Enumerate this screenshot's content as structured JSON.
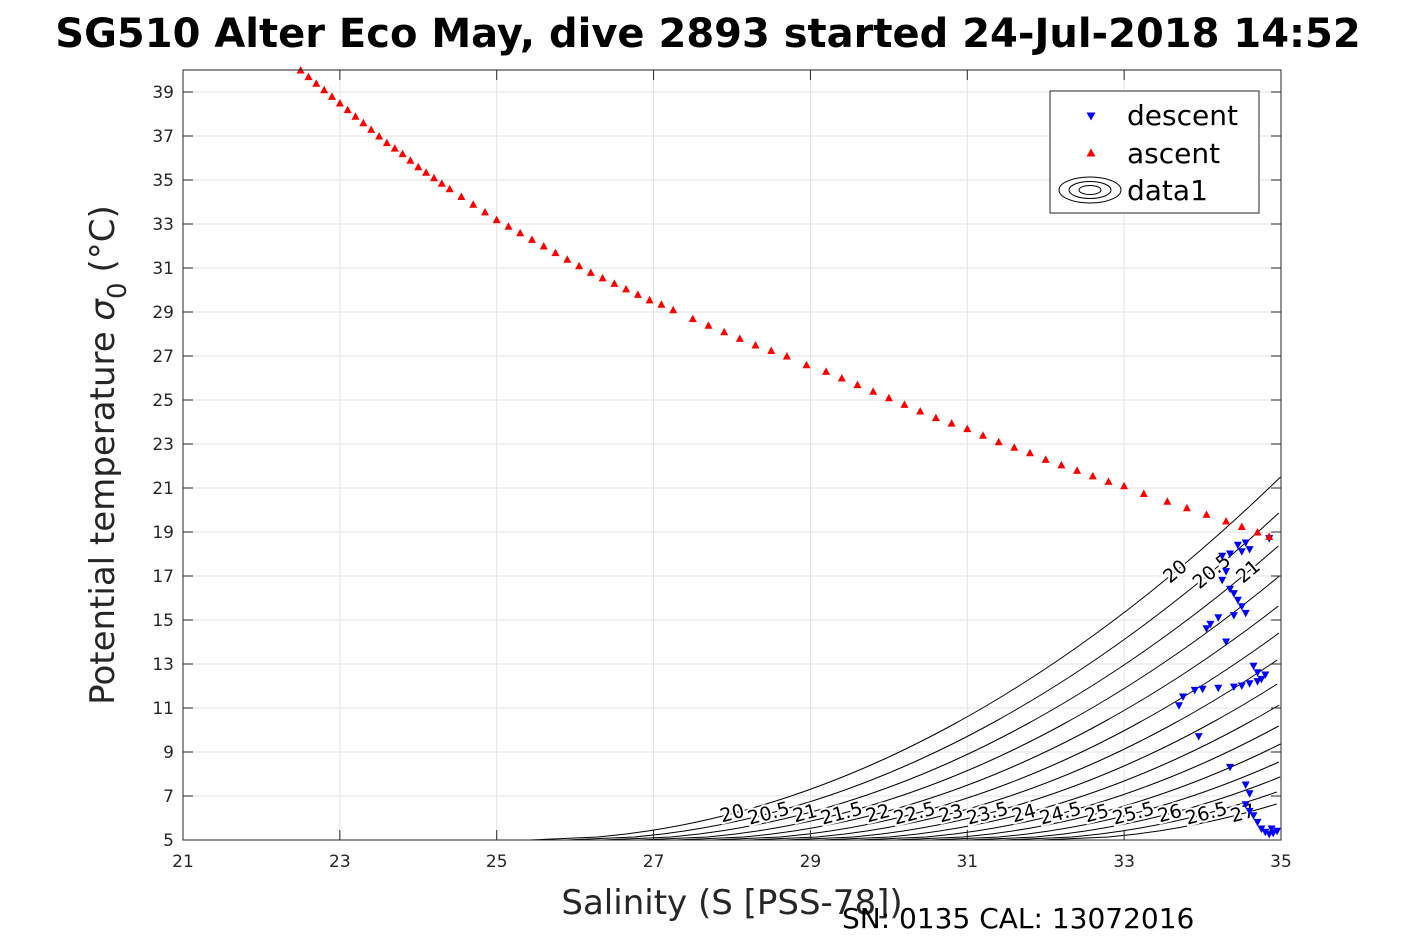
{
  "chart_data": {
    "type": "scatter",
    "title": "SG510 Alter Eco May, dive 2893 started 24-Jul-2018 14:52",
    "xlabel": "Salinity (S [PSS-78])",
    "ylabel": "Potential temperature",
    "ylabel_symbol": "σ",
    "ylabel_subscript": "0",
    "ylabel_unit": "(°C)",
    "footer": "SN: 0135  CAL: 13072016",
    "xlim": [
      21,
      35
    ],
    "ylim": [
      5,
      40
    ],
    "xticks": [
      "21",
      "23",
      "25",
      "27",
      "29",
      "31",
      "33",
      "35"
    ],
    "yticks": [
      "5",
      "7",
      "9",
      "11",
      "13",
      "15",
      "17",
      "19",
      "21",
      "23",
      "25",
      "27",
      "29",
      "31",
      "33",
      "35",
      "37",
      "39"
    ],
    "grid": true,
    "legend_position": "top-right",
    "legend": [
      {
        "name": "descent",
        "marker": "down-triangle",
        "color": "#0000ff"
      },
      {
        "name": "ascent",
        "marker": "up-triangle",
        "color": "#ff0000"
      },
      {
        "name": "data1",
        "marker": "contour",
        "color": "#000000"
      }
    ],
    "series": [
      {
        "name": "descent",
        "color": "#0000ff",
        "marker": "down-triangle",
        "points": [
          [
            34.85,
            18.7
          ],
          [
            34.55,
            18.5
          ],
          [
            34.45,
            18.4
          ],
          [
            34.6,
            18.2
          ],
          [
            34.35,
            18.0
          ],
          [
            34.25,
            17.9
          ],
          [
            34.5,
            18.1
          ],
          [
            34.3,
            17.2
          ],
          [
            34.25,
            16.8
          ],
          [
            34.35,
            16.4
          ],
          [
            34.4,
            16.2
          ],
          [
            34.45,
            15.9
          ],
          [
            34.5,
            15.6
          ],
          [
            34.55,
            15.3
          ],
          [
            34.4,
            15.2
          ],
          [
            34.2,
            15.1
          ],
          [
            34.1,
            14.8
          ],
          [
            34.05,
            14.6
          ],
          [
            34.3,
            14.0
          ],
          [
            34.65,
            12.9
          ],
          [
            34.7,
            12.6
          ],
          [
            34.8,
            12.5
          ],
          [
            34.75,
            12.3
          ],
          [
            34.7,
            12.2
          ],
          [
            34.6,
            12.1
          ],
          [
            34.5,
            12.0
          ],
          [
            34.4,
            11.95
          ],
          [
            34.2,
            11.9
          ],
          [
            34.0,
            11.85
          ],
          [
            33.9,
            11.8
          ],
          [
            33.75,
            11.5
          ],
          [
            33.7,
            11.1
          ],
          [
            33.95,
            9.7
          ],
          [
            34.35,
            8.3
          ],
          [
            34.55,
            7.5
          ],
          [
            34.6,
            7.1
          ],
          [
            34.55,
            6.6
          ],
          [
            34.6,
            6.3
          ],
          [
            34.65,
            6.1
          ],
          [
            34.7,
            5.8
          ],
          [
            34.75,
            5.5
          ],
          [
            34.8,
            5.35
          ],
          [
            34.85,
            5.25
          ],
          [
            34.9,
            5.3
          ],
          [
            34.95,
            5.4
          ],
          [
            34.88,
            5.5
          ]
        ]
      },
      {
        "name": "ascent",
        "color": "#ff0000",
        "marker": "up-triangle",
        "points": [
          [
            22.5,
            40.0
          ],
          [
            22.6,
            39.7
          ],
          [
            22.7,
            39.4
          ],
          [
            22.8,
            39.1
          ],
          [
            22.9,
            38.8
          ],
          [
            23.0,
            38.5
          ],
          [
            23.1,
            38.2
          ],
          [
            23.2,
            37.9
          ],
          [
            23.3,
            37.6
          ],
          [
            23.4,
            37.3
          ],
          [
            23.5,
            37.0
          ],
          [
            23.6,
            36.7
          ],
          [
            23.7,
            36.45
          ],
          [
            23.8,
            36.2
          ],
          [
            23.9,
            35.9
          ],
          [
            24.0,
            35.6
          ],
          [
            24.1,
            35.35
          ],
          [
            24.2,
            35.1
          ],
          [
            24.3,
            34.85
          ],
          [
            24.4,
            34.6
          ],
          [
            24.55,
            34.25
          ],
          [
            24.7,
            33.9
          ],
          [
            24.85,
            33.55
          ],
          [
            25.0,
            33.2
          ],
          [
            25.15,
            32.9
          ],
          [
            25.3,
            32.6
          ],
          [
            25.45,
            32.3
          ],
          [
            25.6,
            32.0
          ],
          [
            25.75,
            31.7
          ],
          [
            25.9,
            31.4
          ],
          [
            26.05,
            31.1
          ],
          [
            26.2,
            30.8
          ],
          [
            26.35,
            30.55
          ],
          [
            26.5,
            30.3
          ],
          [
            26.65,
            30.05
          ],
          [
            26.8,
            29.8
          ],
          [
            26.95,
            29.55
          ],
          [
            27.1,
            29.35
          ],
          [
            27.25,
            29.1
          ],
          [
            27.5,
            28.7
          ],
          [
            27.7,
            28.4
          ],
          [
            27.9,
            28.1
          ],
          [
            28.1,
            27.8
          ],
          [
            28.3,
            27.5
          ],
          [
            28.5,
            27.25
          ],
          [
            28.7,
            27.0
          ],
          [
            28.95,
            26.6
          ],
          [
            29.2,
            26.3
          ],
          [
            29.4,
            26.0
          ],
          [
            29.6,
            25.7
          ],
          [
            29.8,
            25.4
          ],
          [
            30.0,
            25.1
          ],
          [
            30.2,
            24.8
          ],
          [
            30.4,
            24.5
          ],
          [
            30.6,
            24.2
          ],
          [
            30.8,
            23.95
          ],
          [
            31.0,
            23.7
          ],
          [
            31.2,
            23.4
          ],
          [
            31.4,
            23.1
          ],
          [
            31.6,
            22.85
          ],
          [
            31.8,
            22.6
          ],
          [
            32.0,
            22.3
          ],
          [
            32.2,
            22.05
          ],
          [
            32.4,
            21.8
          ],
          [
            32.6,
            21.55
          ],
          [
            32.8,
            21.3
          ],
          [
            33.0,
            21.1
          ],
          [
            33.25,
            20.75
          ],
          [
            33.55,
            20.4
          ],
          [
            33.8,
            20.1
          ],
          [
            34.05,
            19.8
          ],
          [
            34.3,
            19.5
          ],
          [
            34.5,
            19.25
          ],
          [
            34.7,
            19.0
          ],
          [
            34.85,
            18.8
          ]
        ]
      }
    ],
    "density_contours": {
      "levels": [
        "20",
        "20.5",
        "21",
        "21.5",
        "22",
        "22.5",
        "23",
        "23.5",
        "24",
        "24.5",
        "25",
        "25.5",
        "26",
        "26.5",
        "27"
      ]
    }
  }
}
